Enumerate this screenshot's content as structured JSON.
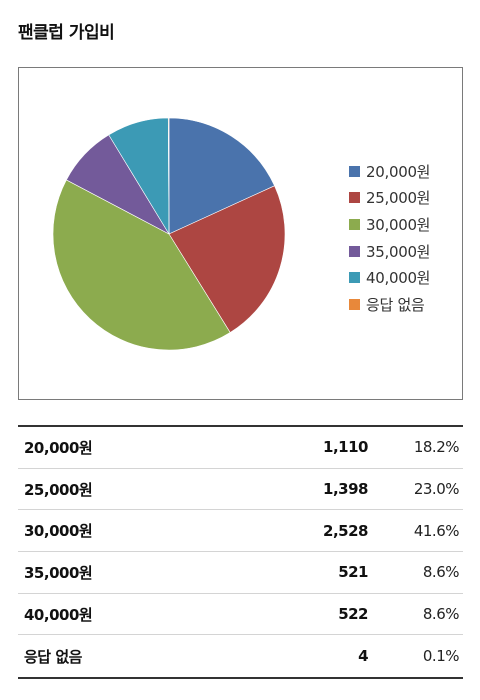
{
  "page": {
    "title": "팬클럽 가입비"
  },
  "chart_data": {
    "type": "pie",
    "title": "",
    "categories": [
      "20,000원",
      "25,000원",
      "30,000원",
      "35,000원",
      "40,000원",
      "응답 없음"
    ],
    "values": [
      18.2,
      23.0,
      41.6,
      8.6,
      8.6,
      0.1
    ],
    "colors": [
      "#4a73ac",
      "#ad4642",
      "#8cab4e",
      "#735a9a",
      "#3c9ab5",
      "#e8883a"
    ],
    "legend_position": "right",
    "start_angle": "top",
    "direction": "clockwise"
  },
  "table": {
    "rows": [
      {
        "label": "20,000원",
        "count": "1,110",
        "percent": "18.2%"
      },
      {
        "label": "25,000원",
        "count": "1,398",
        "percent": "23.0%"
      },
      {
        "label": "30,000원",
        "count": "2,528",
        "percent": "41.6%"
      },
      {
        "label": "35,000원",
        "count": "521",
        "percent": "8.6%"
      },
      {
        "label": "40,000원",
        "count": "522",
        "percent": "8.6%"
      },
      {
        "label": "응답 없음",
        "count": "4",
        "percent": "0.1%"
      }
    ]
  }
}
